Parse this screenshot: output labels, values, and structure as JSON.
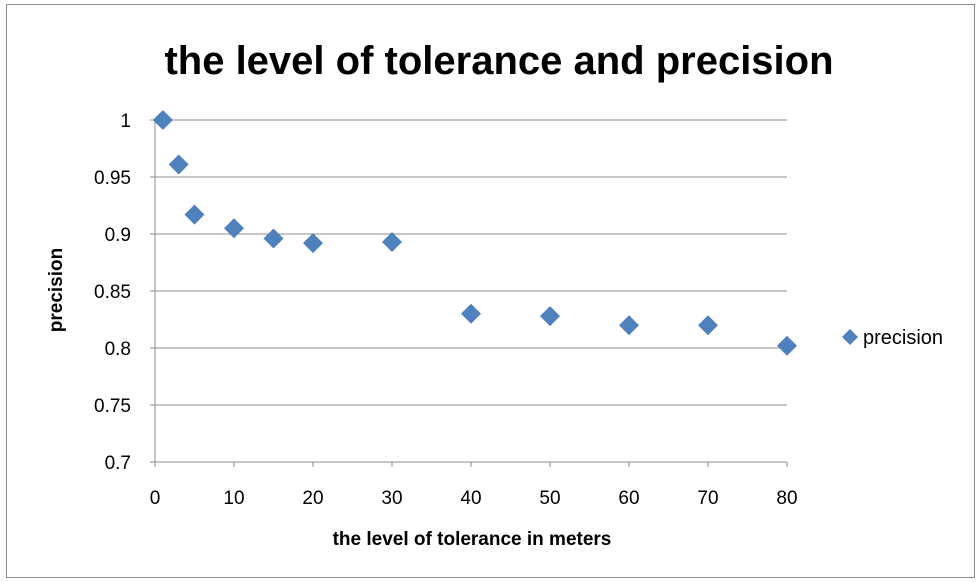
{
  "chart_data": {
    "type": "scatter",
    "title": "the level of tolerance and precision",
    "xlabel": "the level of tolerance in meters",
    "ylabel": "precision",
    "xlim": [
      0,
      80
    ],
    "ylim": [
      0.7,
      1
    ],
    "xticks": [
      0,
      10,
      20,
      30,
      40,
      50,
      60,
      70,
      80
    ],
    "yticks": [
      0.7,
      0.75,
      0.8,
      0.85,
      0.9,
      0.95,
      1
    ],
    "ytick_labels": [
      "0.7",
      "0.75",
      "0.8",
      "0.85",
      "0.9",
      "0.95",
      "1"
    ],
    "grid": "horizontal",
    "legend_position": "right",
    "marker": "diamond",
    "color": "#4f81bd",
    "series": [
      {
        "name": "precision",
        "x": [
          1,
          3,
          5,
          10,
          15,
          20,
          30,
          40,
          50,
          60,
          70,
          80
        ],
        "y": [
          1.0,
          0.961,
          0.917,
          0.905,
          0.896,
          0.892,
          0.893,
          0.83,
          0.828,
          0.82,
          0.82,
          0.802
        ]
      }
    ]
  }
}
